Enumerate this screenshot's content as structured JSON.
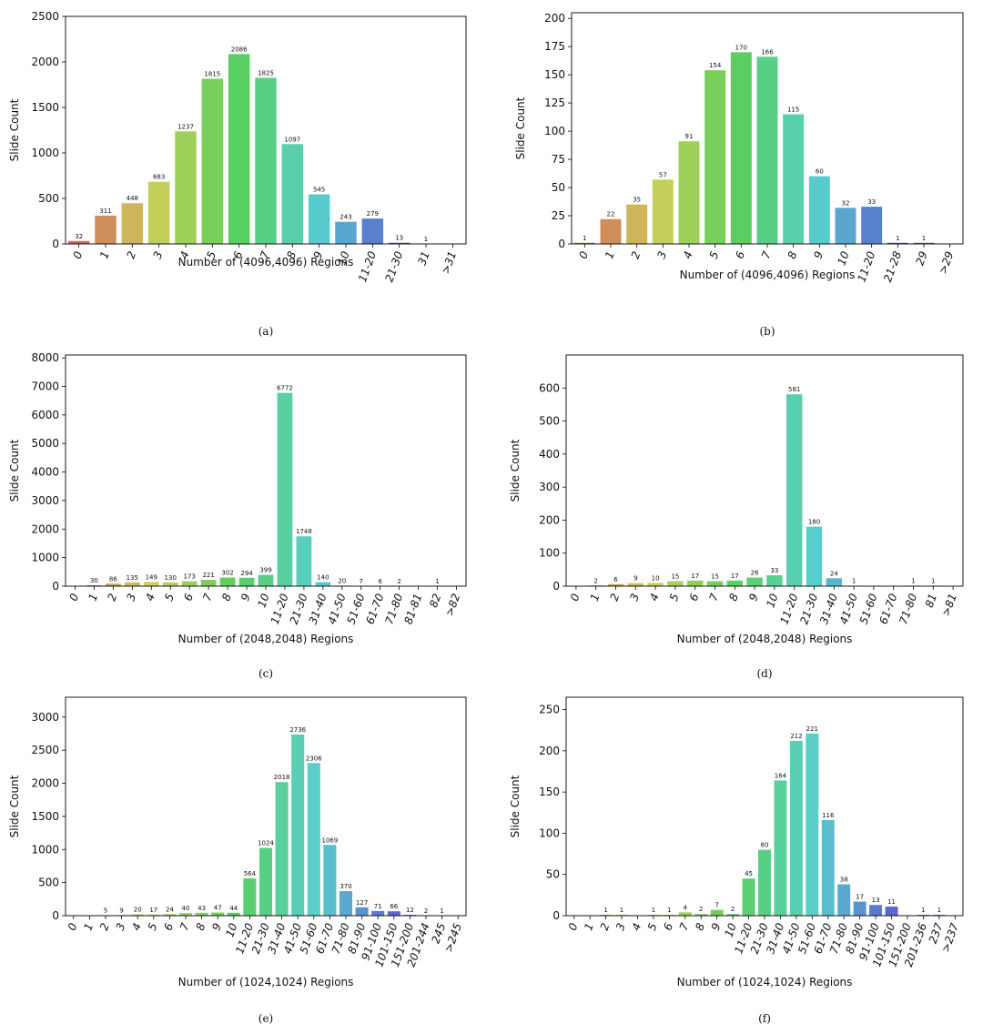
{
  "chart_data": [
    {
      "id": "a",
      "type": "bar",
      "caption": "(a)",
      "xlabel": "Number of (4096,4096) Regions",
      "ylabel": "Slide Count",
      "ylim": [
        0,
        2500
      ],
      "yticks": [
        0,
        500,
        1000,
        1500,
        2000,
        2500
      ],
      "categories": [
        "0",
        "1",
        "2",
        "3",
        "4",
        "5",
        "6",
        "7",
        "8",
        "9",
        "10",
        "11-20",
        "21-30",
        "31",
        ">31"
      ],
      "values": [
        32,
        311,
        448,
        683,
        1237,
        1815,
        2086,
        1825,
        1097,
        545,
        243,
        279,
        13,
        1,
        0
      ],
      "labels": [
        "32",
        "311",
        "448",
        "683",
        "1237",
        "1815",
        "2086",
        "1825",
        "1097",
        "545",
        "243",
        "279",
        "13",
        "1",
        ""
      ]
    },
    {
      "id": "b",
      "type": "bar",
      "caption": "(b)",
      "xlabel": "Number of (4096,4096) Regions",
      "ylabel": "Slide Count",
      "ylim": [
        0,
        205
      ],
      "yticks": [
        0,
        25,
        50,
        75,
        100,
        125,
        150,
        175,
        200
      ],
      "categories": [
        "0",
        "1",
        "2",
        "3",
        "4",
        "5",
        "6",
        "7",
        "8",
        "9",
        "10",
        "11-20",
        "21-28",
        "29",
        ">29"
      ],
      "values": [
        1,
        22,
        35,
        57,
        91,
        154,
        170,
        166,
        115,
        60,
        32,
        33,
        1,
        1,
        0
      ],
      "labels": [
        "1",
        "22",
        "35",
        "57",
        "91",
        "154",
        "170",
        "166",
        "115",
        "60",
        "32",
        "33",
        "1",
        "1",
        ""
      ]
    },
    {
      "id": "c",
      "type": "bar",
      "caption": "(c)",
      "xlabel": "Number of (2048,2048) Regions",
      "ylabel": "Slide Count",
      "ylim": [
        0,
        8100
      ],
      "yticks": [
        0,
        1000,
        2000,
        3000,
        4000,
        5000,
        6000,
        7000,
        8000
      ],
      "categories": [
        "0",
        "1",
        "2",
        "3",
        "4",
        "5",
        "6",
        "7",
        "8",
        "9",
        "10",
        "11-20",
        "21-30",
        "31-40",
        "41-50",
        "51-60",
        "61-70",
        "71-80",
        "81-81",
        "82",
        ">82"
      ],
      "values": [
        0,
        30,
        86,
        135,
        149,
        130,
        173,
        221,
        302,
        294,
        399,
        6772,
        1748,
        140,
        20,
        7,
        6,
        2,
        0,
        1,
        0
      ],
      "labels": [
        "",
        "30",
        "86",
        "135",
        "149",
        "130",
        "173",
        "221",
        "302",
        "294",
        "399",
        "6772",
        "1748",
        "140",
        "20",
        "7",
        "6",
        "2",
        "",
        "1",
        ""
      ]
    },
    {
      "id": "d",
      "type": "bar",
      "caption": "(d)",
      "xlabel": "Number of (2048,2048) Regions",
      "ylabel": "Slide Count",
      "ylim": [
        0,
        700
      ],
      "yticks": [
        0,
        100,
        200,
        300,
        400,
        500,
        600
      ],
      "categories": [
        "0",
        "1",
        "2",
        "3",
        "4",
        "5",
        "6",
        "7",
        "8",
        "9",
        "10",
        "11-20",
        "21-30",
        "31-40",
        "41-50",
        "51-60",
        "61-70",
        "71-80",
        "81",
        ">81"
      ],
      "values": [
        0,
        2,
        6,
        9,
        10,
        15,
        17,
        15,
        17,
        26,
        33,
        581,
        180,
        24,
        1,
        0,
        0,
        1,
        1,
        0
      ],
      "labels": [
        "",
        "2",
        "6",
        "9",
        "10",
        "15",
        "17",
        "15",
        "17",
        "26",
        "33",
        "581",
        "180",
        "24",
        "1",
        "",
        "",
        "1",
        "1",
        ""
      ]
    },
    {
      "id": "e",
      "type": "bar",
      "caption": "(e)",
      "xlabel": "Number of (1024,1024) Regions",
      "ylabel": "Slide Count",
      "ylim": [
        0,
        3300
      ],
      "yticks": [
        0,
        500,
        1000,
        1500,
        2000,
        2500,
        3000
      ],
      "categories": [
        "0",
        "1",
        "2",
        "3",
        "4",
        "5",
        "6",
        "7",
        "8",
        "9",
        "10",
        "11-20",
        "21-30",
        "31-40",
        "41-50",
        "51-60",
        "61-70",
        "71-80",
        "81-90",
        "91-100",
        "101-150",
        "151-200",
        "201-244",
        "245",
        ">245"
      ],
      "values": [
        0,
        0,
        5,
        9,
        20,
        17,
        24,
        40,
        43,
        47,
        44,
        564,
        1024,
        2018,
        2736,
        2306,
        1069,
        370,
        127,
        71,
        66,
        12,
        2,
        1,
        0
      ],
      "labels": [
        "",
        "",
        "5",
        "9",
        "20",
        "17",
        "24",
        "40",
        "43",
        "47",
        "44",
        "564",
        "1024",
        "2018",
        "2736",
        "2306",
        "1069",
        "370",
        "127",
        "71",
        "66",
        "12",
        "2",
        "1",
        ""
      ]
    },
    {
      "id": "f",
      "type": "bar",
      "caption": "(f)",
      "xlabel": "Number of (1024,1024) Regions",
      "ylabel": "Slide Count",
      "ylim": [
        0,
        265
      ],
      "yticks": [
        0,
        50,
        100,
        150,
        200,
        250
      ],
      "categories": [
        "0",
        "1",
        "2",
        "3",
        "4",
        "5",
        "6",
        "7",
        "8",
        "9",
        "10",
        "11-20",
        "21-30",
        "31-40",
        "41-50",
        "51-60",
        "61-70",
        "71-80",
        "81-90",
        "91-100",
        "101-150",
        "151-200",
        "201-236",
        "237",
        ">237"
      ],
      "values": [
        0,
        0,
        1,
        1,
        0,
        1,
        1,
        4,
        2,
        7,
        2,
        45,
        80,
        164,
        212,
        221,
        116,
        38,
        17,
        13,
        11,
        0,
        1,
        1,
        0
      ],
      "labels": [
        "",
        "",
        "1",
        "1",
        "",
        "1",
        "1",
        "4",
        "2",
        "7",
        "2",
        "45",
        "80",
        "164",
        "212",
        "221",
        "116",
        "38",
        "17",
        "13",
        "11",
        "",
        "1",
        "1",
        ""
      ]
    }
  ]
}
